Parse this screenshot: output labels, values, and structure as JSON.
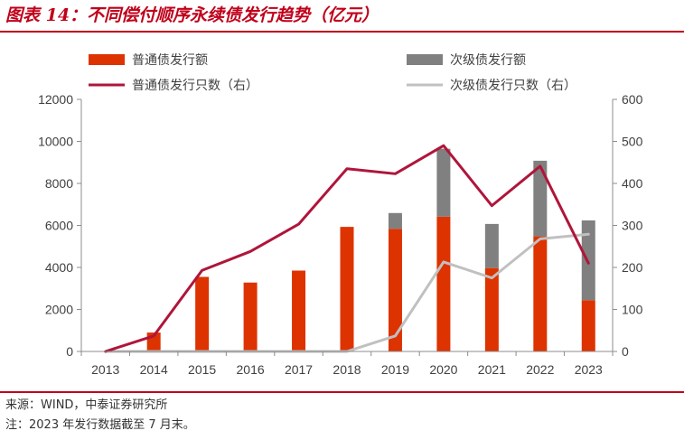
{
  "header": {
    "title": "图表 14：不同偿付顺序永续债发行趋势（亿元）"
  },
  "footer": {
    "source": "来源：WIND，中泰证券研究所",
    "note": "注：2023 年发行数据截至 7 月末。"
  },
  "chart_data": {
    "type": "bar",
    "categories": [
      "2013",
      "2014",
      "2015",
      "2016",
      "2017",
      "2018",
      "2019",
      "2020",
      "2021",
      "2022",
      "2023"
    ],
    "series": [
      {
        "name": "普通债发行额",
        "kind": "bar",
        "axis": "left",
        "color": "#dd3300",
        "values": [
          0,
          900,
          3550,
          3280,
          3850,
          5930,
          5840,
          6420,
          3970,
          5480,
          2440
        ]
      },
      {
        "name": "次级债发行额",
        "kind": "bar-stacked",
        "axis": "left",
        "color": "#808080",
        "values": [
          0,
          0,
          0,
          0,
          0,
          0,
          750,
          3230,
          2100,
          3600,
          3800
        ]
      },
      {
        "name": "普通债发行只数（右）",
        "kind": "line",
        "axis": "right",
        "color": "#b0153a",
        "values": [
          0,
          37,
          193,
          238,
          303,
          435,
          423,
          490,
          347,
          441,
          210
        ]
      },
      {
        "name": "次级债发行只数（右）",
        "kind": "line",
        "axis": "right",
        "color": "#c0c0c0",
        "values": [
          0,
          0,
          0,
          0,
          0,
          0,
          37,
          213,
          175,
          268,
          279
        ]
      }
    ],
    "yleft": {
      "ticks": [
        "0",
        "2000",
        "4000",
        "6000",
        "8000",
        "10000",
        "12000"
      ],
      "lim": [
        0,
        12000
      ]
    },
    "yright": {
      "ticks": [
        "0",
        "100",
        "200",
        "300",
        "400",
        "500",
        "600"
      ],
      "lim": [
        0,
        600
      ]
    },
    "legend_placement": "top",
    "grid": false
  }
}
